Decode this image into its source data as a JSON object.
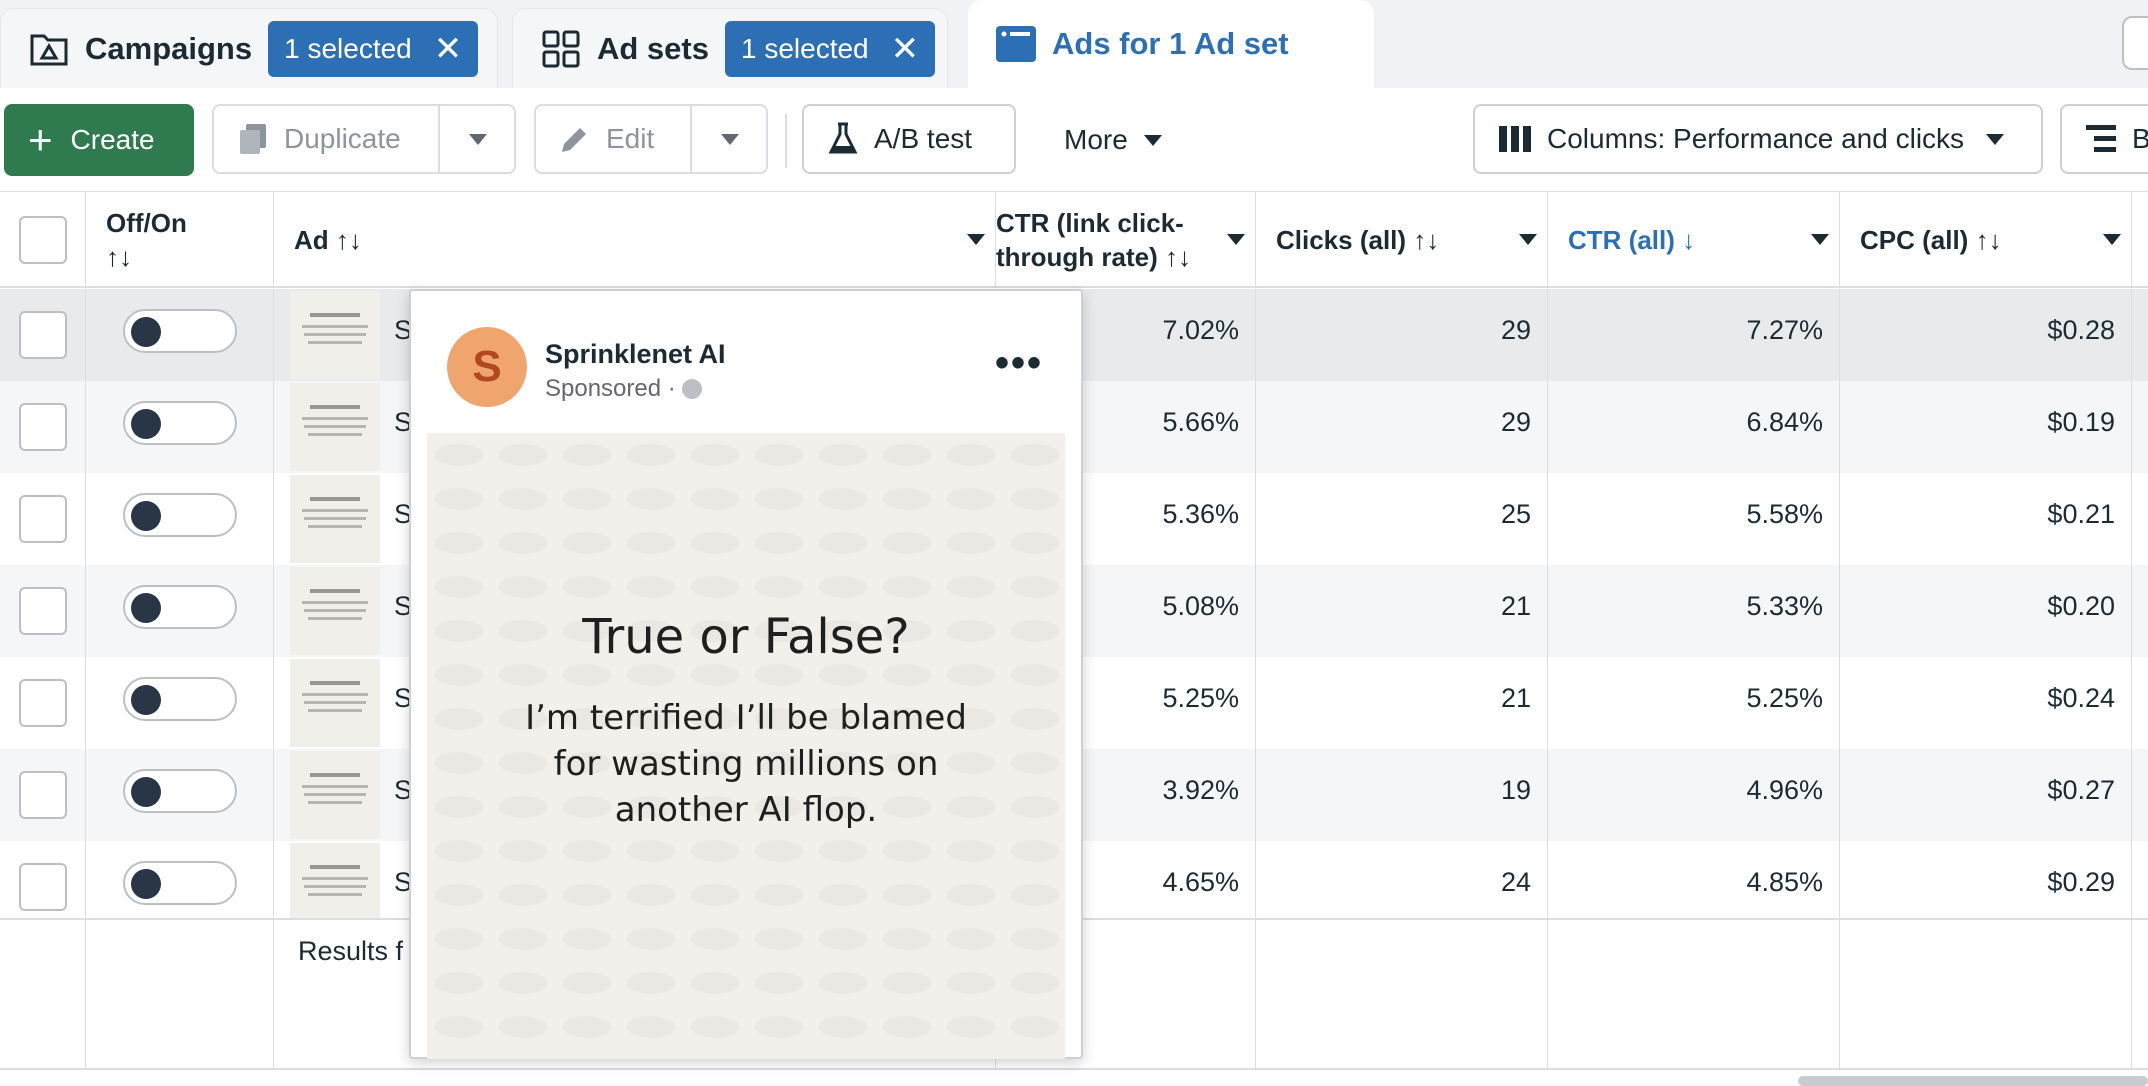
{
  "tabs": {
    "campaigns": {
      "label": "Campaigns",
      "chip": "1 selected"
    },
    "adsets": {
      "label": "Ad sets",
      "chip": "1 selected"
    },
    "ads": {
      "label": "Ads for 1 Ad set"
    }
  },
  "toolbar": {
    "create": "Create",
    "duplicate": "Duplicate",
    "edit": "Edit",
    "abtest": "A/B test",
    "more": "More",
    "columns": "Columns: Performance and clicks",
    "breakdown_partial": "B"
  },
  "table": {
    "headers": {
      "offon": "Off/On",
      "ad": "Ad",
      "ctr_link_line1": "CTR (link click-",
      "ctr_link_line2": "through rate)",
      "clicks": "Clicks (all)",
      "ctr_all": "CTR (all)",
      "cpc_all": "CPC (all)"
    },
    "sort_icon": "↑↓",
    "sort_desc_icon": "↓",
    "rows": [
      {
        "ad_initial": "S",
        "ctr_link": "7.02%",
        "clicks": "29",
        "ctr_all": "7.27%",
        "cpc": "$0.28"
      },
      {
        "ad_initial": "S",
        "ctr_link": "5.66%",
        "clicks": "29",
        "ctr_all": "6.84%",
        "cpc": "$0.19"
      },
      {
        "ad_initial": "S",
        "ctr_link": "5.36%",
        "clicks": "25",
        "ctr_all": "5.58%",
        "cpc": "$0.21"
      },
      {
        "ad_initial": "S",
        "ctr_link": "5.08%",
        "clicks": "21",
        "ctr_all": "5.33%",
        "cpc": "$0.20"
      },
      {
        "ad_initial": "S",
        "ctr_link": "5.25%",
        "clicks": "21",
        "ctr_all": "5.25%",
        "cpc": "$0.24"
      },
      {
        "ad_initial": "S",
        "ctr_link": "3.92%",
        "clicks": "19",
        "ctr_all": "4.96%",
        "cpc": "$0.27"
      },
      {
        "ad_initial": "S",
        "ctr_link": "4.65%",
        "clicks": "24",
        "ctr_all": "4.85%",
        "cpc": "$0.29"
      }
    ],
    "footer": "Results f"
  },
  "preview": {
    "avatar_letter": "S",
    "page_name": "Sprinklenet AI",
    "sponsored": "Sponsored ·",
    "more_dots": "•••",
    "creative_title": "True or False?",
    "creative_body": "I’m terrified I’ll be blamed for wasting millions on another AI flop."
  },
  "colors": {
    "accent": "#2d6fb5",
    "create_green": "#2f7a4f",
    "toggle_knob": "#283645"
  }
}
